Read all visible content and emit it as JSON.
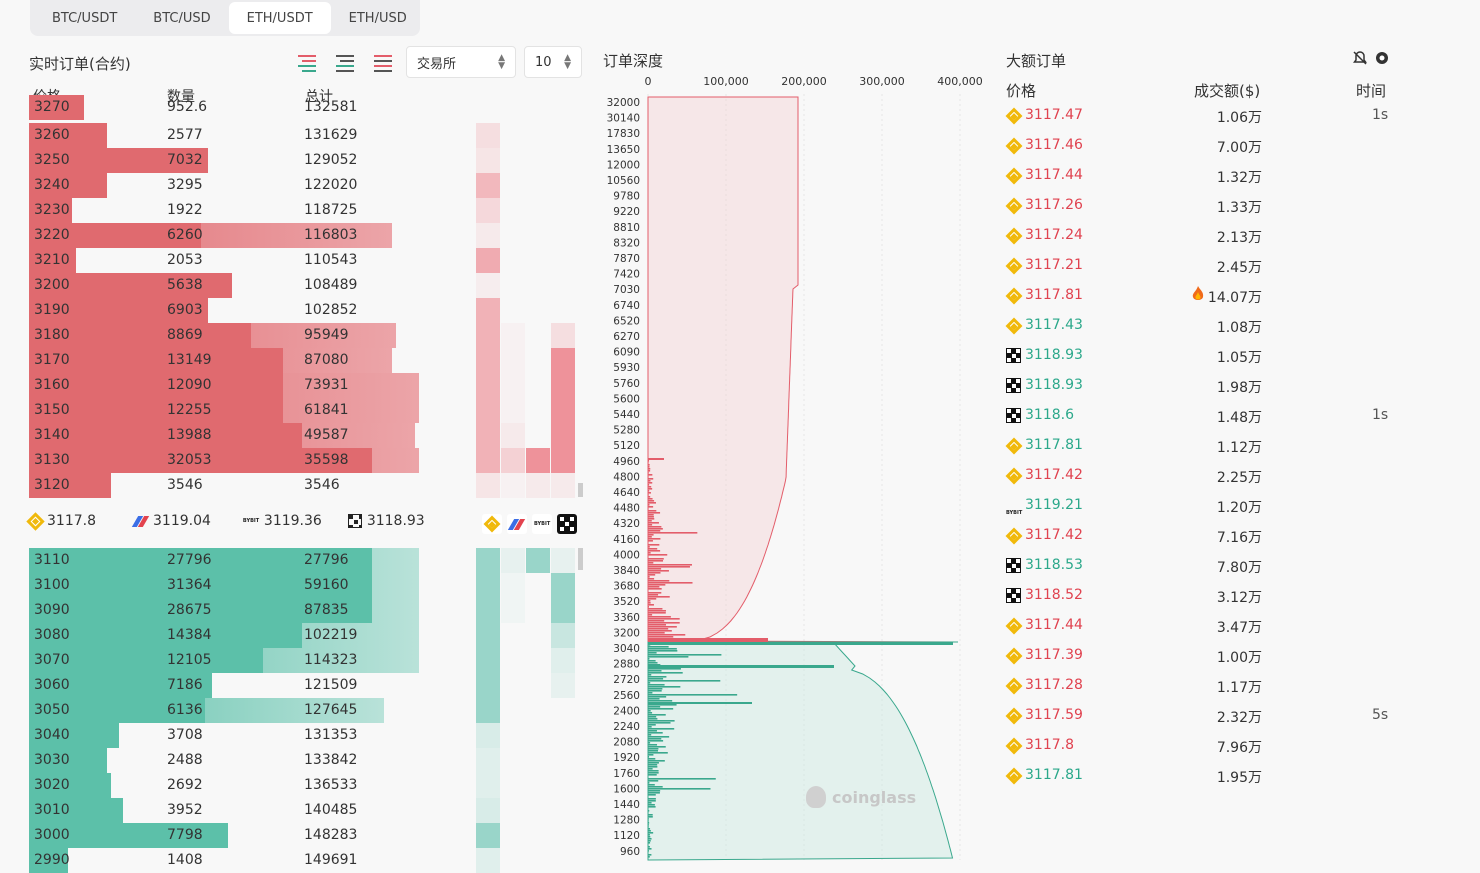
{
  "tabs": [
    "BTC/USDT",
    "BTC/USD",
    "ETH/USDT",
    "ETH/USD"
  ],
  "active_tab": 2,
  "orderbook": {
    "title": "实时订单(合约)",
    "exchange_select": "交易所",
    "depth_select": "10",
    "headers": {
      "price": "价格",
      "qty": "数量",
      "total": "总计"
    },
    "partial_top": {
      "price": "3270",
      "qty": "952.6",
      "total": "132581"
    },
    "asks": [
      {
        "price": "3260",
        "qty": "2577",
        "total": "131629",
        "w1": 0.2,
        "w2": 0
      },
      {
        "price": "3250",
        "qty": "7032",
        "total": "129052",
        "w1": 0.46,
        "w2": 0
      },
      {
        "price": "3240",
        "qty": "3295",
        "total": "122020",
        "w1": 0.2,
        "w2": 0
      },
      {
        "price": "3230",
        "qty": "1922",
        "total": "118725",
        "w1": 0.11,
        "w2": 0
      },
      {
        "price": "3220",
        "qty": "6260",
        "total": "116803",
        "w1": 0.44,
        "w2": 0.93
      },
      {
        "price": "3210",
        "qty": "2053",
        "total": "110543",
        "w1": 0.12,
        "w2": 0
      },
      {
        "price": "3200",
        "qty": "5638",
        "total": "108489",
        "w1": 0.52,
        "w2": 0
      },
      {
        "price": "3190",
        "qty": "6903",
        "total": "102852",
        "w1": 0.46,
        "w2": 0
      },
      {
        "price": "3180",
        "qty": "8869",
        "total": "95949",
        "w1": 0.57,
        "w2": 0.94
      },
      {
        "price": "3170",
        "qty": "13149",
        "total": "87080",
        "w1": 0.65,
        "w2": 0.93
      },
      {
        "price": "3160",
        "qty": "12090",
        "total": "73931",
        "w1": 0.65,
        "w2": 1.0
      },
      {
        "price": "3150",
        "qty": "12255",
        "total": "61841",
        "w1": 0.65,
        "w2": 1.0
      },
      {
        "price": "3140",
        "qty": "13988",
        "total": "49587",
        "w1": 0.7,
        "w2": 0.99
      },
      {
        "price": "3130",
        "qty": "32053",
        "total": "35598",
        "w1": 0.88,
        "w2": 1.0
      },
      {
        "price": "3120",
        "qty": "3546",
        "total": "3546",
        "w1": 0.21,
        "w2": 0
      }
    ],
    "bids": [
      {
        "price": "3110",
        "qty": "27796",
        "total": "27796",
        "w1": 0.88,
        "w2": 1.0
      },
      {
        "price": "3100",
        "qty": "31364",
        "total": "59160",
        "w1": 0.88,
        "w2": 1.0
      },
      {
        "price": "3090",
        "qty": "28675",
        "total": "87835",
        "w1": 0.88,
        "w2": 1.0
      },
      {
        "price": "3080",
        "qty": "14384",
        "total": "102219",
        "w1": 0.7,
        "w2": 1.0
      },
      {
        "price": "3070",
        "qty": "12105",
        "total": "114323",
        "w1": 0.6,
        "w2": 1.0
      },
      {
        "price": "3060",
        "qty": "7186",
        "total": "121509",
        "w1": 0.47,
        "w2": 0
      },
      {
        "price": "3050",
        "qty": "6136",
        "total": "127645",
        "w1": 0.45,
        "w2": 0.91
      },
      {
        "price": "3040",
        "qty": "3708",
        "total": "131353",
        "w1": 0.23,
        "w2": 0
      },
      {
        "price": "3030",
        "qty": "2488",
        "total": "133842",
        "w1": 0.2,
        "w2": 0
      },
      {
        "price": "3020",
        "qty": "2692",
        "total": "136533",
        "w1": 0.21,
        "w2": 0
      },
      {
        "price": "3010",
        "qty": "3952",
        "total": "140485",
        "w1": 0.24,
        "w2": 0
      },
      {
        "price": "3000",
        "qty": "7798",
        "total": "148283",
        "w1": 0.51,
        "w2": 0
      },
      {
        "price": "2990",
        "qty": "1408",
        "total": "149691",
        "w1": 0.1,
        "w2": 0
      }
    ],
    "exchange_prices": [
      {
        "exchange": "binance-icon",
        "price": "3117.8"
      },
      {
        "exchange": "coinbase-icon",
        "price": "3119.04"
      },
      {
        "exchange": "bybit-icon",
        "price": "3119.36"
      },
      {
        "exchange": "okx-icon",
        "price": "3118.93"
      }
    ]
  },
  "depth": {
    "title": "订单深度",
    "x_ticks": [
      "0",
      "100,000",
      "200,000",
      "300,000",
      "400,000"
    ],
    "y_ticks": [
      "32000",
      "30140",
      "17830",
      "13650",
      "12000",
      "10560",
      "9780",
      "9220",
      "8810",
      "8320",
      "7870",
      "7420",
      "7030",
      "6740",
      "6520",
      "6270",
      "6090",
      "5930",
      "5760",
      "5600",
      "5440",
      "5280",
      "5120",
      "4960",
      "4800",
      "4640",
      "4480",
      "4320",
      "4160",
      "4000",
      "3840",
      "3680",
      "3520",
      "3360",
      "3200",
      "3040",
      "2880",
      "2720",
      "2560",
      "2400",
      "2240",
      "2080",
      "1920",
      "1760",
      "1600",
      "1440",
      "1280",
      "1120",
      "960"
    ],
    "watermark": "coinglass",
    "ask_color": "#e35d6a",
    "bid_color": "#3aa88d"
  },
  "large_orders": {
    "title": "大额订单",
    "headers": {
      "price": "价格",
      "amount": "成交额($)",
      "time": "时间"
    },
    "rows": [
      {
        "ex": "binance",
        "price": "3117.47",
        "side": "red",
        "amount": "1.06万",
        "time": "1s"
      },
      {
        "ex": "binance",
        "price": "3117.46",
        "side": "red",
        "amount": "7.00万",
        "time": ""
      },
      {
        "ex": "binance",
        "price": "3117.44",
        "side": "red",
        "amount": "1.32万",
        "time": ""
      },
      {
        "ex": "binance",
        "price": "3117.26",
        "side": "red",
        "amount": "1.33万",
        "time": ""
      },
      {
        "ex": "binance",
        "price": "3117.24",
        "side": "red",
        "amount": "2.13万",
        "time": ""
      },
      {
        "ex": "binance",
        "price": "3117.21",
        "side": "red",
        "amount": "2.45万",
        "time": ""
      },
      {
        "ex": "binance",
        "price": "3117.81",
        "side": "red",
        "amount": "14.07万",
        "time": "",
        "fire": true
      },
      {
        "ex": "binance",
        "price": "3117.43",
        "side": "green",
        "amount": "1.08万",
        "time": ""
      },
      {
        "ex": "okx",
        "price": "3118.93",
        "side": "green",
        "amount": "1.05万",
        "time": ""
      },
      {
        "ex": "okx",
        "price": "3118.93",
        "side": "green",
        "amount": "1.98万",
        "time": ""
      },
      {
        "ex": "okx",
        "price": "3118.6",
        "side": "green",
        "amount": "1.48万",
        "time": "1s"
      },
      {
        "ex": "binance",
        "price": "3117.81",
        "side": "green",
        "amount": "1.12万",
        "time": ""
      },
      {
        "ex": "binance",
        "price": "3117.42",
        "side": "red",
        "amount": "2.25万",
        "time": ""
      },
      {
        "ex": "bybit",
        "price": "3119.21",
        "side": "green",
        "amount": "1.20万",
        "time": ""
      },
      {
        "ex": "binance",
        "price": "3117.42",
        "side": "red",
        "amount": "7.16万",
        "time": ""
      },
      {
        "ex": "okx",
        "price": "3118.53",
        "side": "green",
        "amount": "7.80万",
        "time": ""
      },
      {
        "ex": "okx",
        "price": "3118.52",
        "side": "red",
        "amount": "3.12万",
        "time": ""
      },
      {
        "ex": "binance",
        "price": "3117.44",
        "side": "red",
        "amount": "3.47万",
        "time": ""
      },
      {
        "ex": "binance",
        "price": "3117.39",
        "side": "red",
        "amount": "1.00万",
        "time": ""
      },
      {
        "ex": "binance",
        "price": "3117.28",
        "side": "red",
        "amount": "1.17万",
        "time": ""
      },
      {
        "ex": "binance",
        "price": "3117.59",
        "side": "red",
        "amount": "2.32万",
        "time": "5s"
      },
      {
        "ex": "binance",
        "price": "3117.8",
        "side": "red",
        "amount": "7.96万",
        "time": ""
      },
      {
        "ex": "binance",
        "price": "3117.81",
        "side": "green",
        "amount": "1.95万",
        "time": ""
      }
    ]
  }
}
